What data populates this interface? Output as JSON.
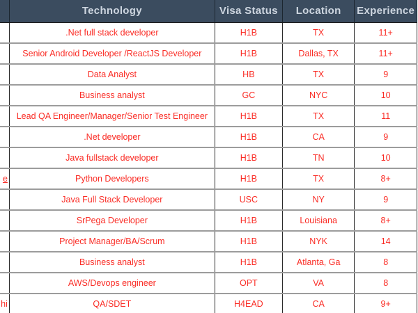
{
  "colors": {
    "header_background": "#3b4c5f",
    "header_text": "#ced6e0",
    "data_text_red": "#fa2c25",
    "grid_vertical": "#2b2b2b",
    "grid_horizontal": "#9c9c9c",
    "row_background": "#ffffff"
  },
  "table": {
    "header": {
      "fragment": "",
      "technology": "Technology",
      "visa": "Visa Status",
      "location": "Location",
      "experience": "Experience"
    },
    "rows": [
      {
        "fragment": "",
        "fragment_underlined": false,
        "technology": ".Net full stack developer",
        "visa": "H1B",
        "location": "TX",
        "experience": "11+"
      },
      {
        "fragment": "",
        "fragment_underlined": false,
        "technology": "Senior Android Developer /ReactJS Developer",
        "visa": "H1B",
        "location": "Dallas, TX",
        "experience": "11+"
      },
      {
        "fragment": "",
        "fragment_underlined": false,
        "technology": "Data Analyst",
        "visa": "HB",
        "location": "TX",
        "experience": "9"
      },
      {
        "fragment": "",
        "fragment_underlined": false,
        "technology": "Business analyst",
        "visa": "GC",
        "location": "NYC",
        "experience": "10"
      },
      {
        "fragment": "",
        "fragment_underlined": false,
        "technology": "Lead QA Engineer/Manager/Senior Test Engineer",
        "visa": "H1B",
        "location": "TX",
        "experience": "11"
      },
      {
        "fragment": "",
        "fragment_underlined": false,
        "technology": ".Net developer",
        "visa": "H1B",
        "location": "CA",
        "experience": "9"
      },
      {
        "fragment": "",
        "fragment_underlined": false,
        "technology": "Java fullstack developer",
        "visa": "H1B",
        "location": "TN",
        "experience": "10"
      },
      {
        "fragment": "e",
        "fragment_underlined": true,
        "technology": "Python Developers",
        "visa": "H1B",
        "location": "TX",
        "experience": "8+"
      },
      {
        "fragment": "",
        "fragment_underlined": false,
        "technology": "Java Full Stack Developer",
        "visa": "USC",
        "location": "NY",
        "experience": "9"
      },
      {
        "fragment": "",
        "fragment_underlined": false,
        "technology": "SrPega Developer",
        "visa": "H1B",
        "location": "Louisiana",
        "experience": "8+"
      },
      {
        "fragment": "",
        "fragment_underlined": false,
        "technology": "Project Manager/BA/Scrum",
        "visa": "H1B",
        "location": "NYK",
        "experience": "14"
      },
      {
        "fragment": "",
        "fragment_underlined": false,
        "technology": "Business analyst",
        "visa": "H1B",
        "location": "Atlanta, Ga",
        "experience": "8"
      },
      {
        "fragment": "",
        "fragment_underlined": false,
        "technology": "AWS/Devops engineer",
        "visa": "OPT",
        "location": "VA",
        "experience": "8"
      },
      {
        "fragment": "hi",
        "fragment_underlined": false,
        "technology": "QA/SDET",
        "visa": "H4EAD",
        "location": "CA",
        "experience": "9+"
      }
    ]
  }
}
